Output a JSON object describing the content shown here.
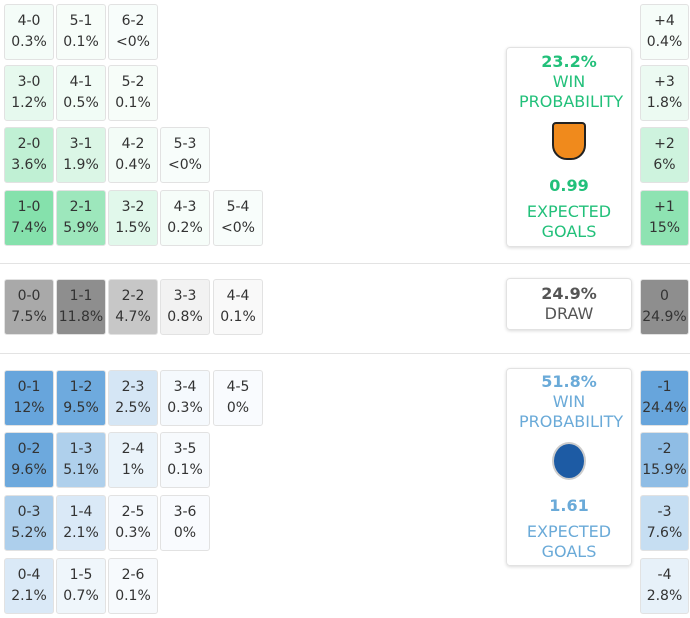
{
  "home": {
    "rows": [
      [
        {
          "score": "4-0",
          "prob": "0.3%"
        },
        {
          "score": "5-1",
          "prob": "0.1%"
        },
        {
          "score": "6-2",
          "prob": "<0%"
        }
      ],
      [
        {
          "score": "3-0",
          "prob": "1.2%"
        },
        {
          "score": "4-1",
          "prob": "0.5%"
        },
        {
          "score": "5-2",
          "prob": "0.1%"
        }
      ],
      [
        {
          "score": "2-0",
          "prob": "3.6%"
        },
        {
          "score": "3-1",
          "prob": "1.9%"
        },
        {
          "score": "4-2",
          "prob": "0.4%"
        },
        {
          "score": "5-3",
          "prob": "<0%"
        }
      ],
      [
        {
          "score": "1-0",
          "prob": "7.4%"
        },
        {
          "score": "2-1",
          "prob": "5.9%"
        },
        {
          "score": "3-2",
          "prob": "1.5%"
        },
        {
          "score": "4-3",
          "prob": "0.2%"
        },
        {
          "score": "5-4",
          "prob": "<0%"
        }
      ]
    ],
    "summary": {
      "probability": "23.2%",
      "label": "WIN PROBABILITY",
      "xg": "0.99",
      "xg_label": "EXPECTED GOALS"
    },
    "margins": [
      {
        "margin": "+4",
        "prob": "0.4%"
      },
      {
        "margin": "+3",
        "prob": "1.8%"
      },
      {
        "margin": "+2",
        "prob": "6%"
      },
      {
        "margin": "+1",
        "prob": "15%"
      }
    ]
  },
  "draw": {
    "rows": [
      [
        {
          "score": "0-0",
          "prob": "7.5%"
        },
        {
          "score": "1-1",
          "prob": "11.8%"
        },
        {
          "score": "2-2",
          "prob": "4.7%"
        },
        {
          "score": "3-3",
          "prob": "0.8%"
        },
        {
          "score": "4-4",
          "prob": "0.1%"
        }
      ]
    ],
    "summary": {
      "probability": "24.9%",
      "label": "DRAW"
    },
    "margins": [
      {
        "margin": "0",
        "prob": "24.9%"
      }
    ]
  },
  "away": {
    "rows": [
      [
        {
          "score": "0-1",
          "prob": "12%"
        },
        {
          "score": "1-2",
          "prob": "9.5%"
        },
        {
          "score": "2-3",
          "prob": "2.5%"
        },
        {
          "score": "3-4",
          "prob": "0.3%"
        },
        {
          "score": "4-5",
          "prob": "0%"
        }
      ],
      [
        {
          "score": "0-2",
          "prob": "9.6%"
        },
        {
          "score": "1-3",
          "prob": "5.1%"
        },
        {
          "score": "2-4",
          "prob": "1%"
        },
        {
          "score": "3-5",
          "prob": "0.1%"
        }
      ],
      [
        {
          "score": "0-3",
          "prob": "5.2%"
        },
        {
          "score": "1-4",
          "prob": "2.1%"
        },
        {
          "score": "2-5",
          "prob": "0.3%"
        },
        {
          "score": "3-6",
          "prob": "0%"
        }
      ],
      [
        {
          "score": "0-4",
          "prob": "2.1%"
        },
        {
          "score": "1-5",
          "prob": "0.7%"
        },
        {
          "score": "2-6",
          "prob": "0.1%"
        }
      ]
    ],
    "summary": {
      "probability": "51.8%",
      "label": "WIN PROBABILITY",
      "xg": "1.61",
      "xg_label": "EXPECTED GOALS"
    },
    "margins": [
      {
        "margin": "-1",
        "prob": "24.4%"
      },
      {
        "margin": "-2",
        "prob": "15.9%"
      },
      {
        "margin": "-3",
        "prob": "7.6%"
      },
      {
        "margin": "-4",
        "prob": "2.8%"
      }
    ]
  }
}
